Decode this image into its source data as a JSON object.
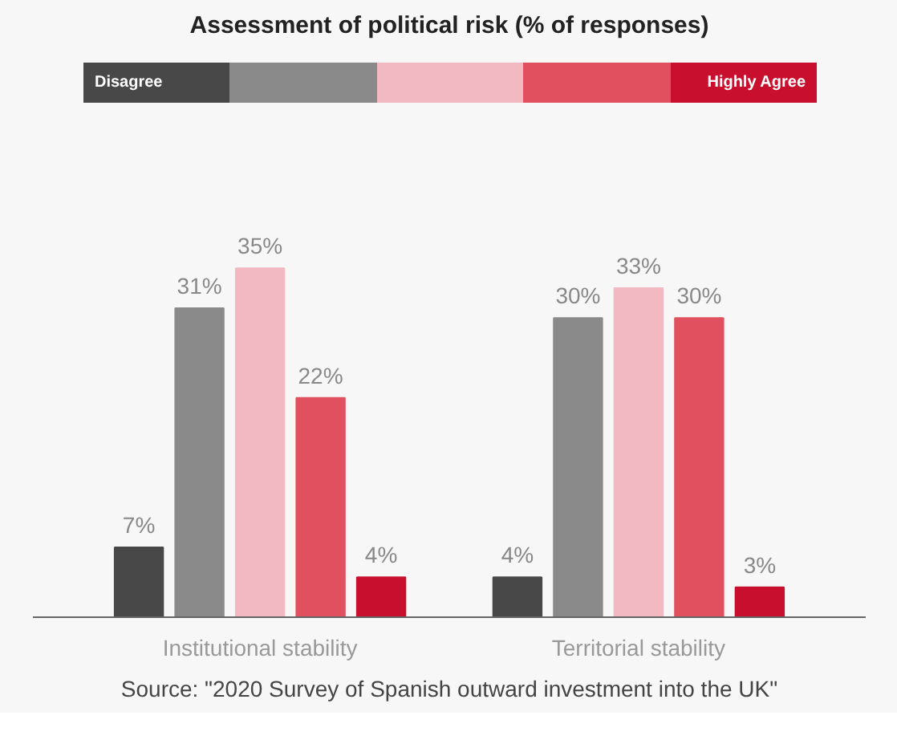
{
  "chart_data": {
    "type": "bar",
    "title": "Assessment of political risk (% of responses)",
    "categories": [
      "Institutional stability",
      "Territorial stability"
    ],
    "series": [
      {
        "name": "Disagree",
        "color": "#484848",
        "values": [
          7,
          4
        ],
        "value_labels": [
          "7%",
          "4%"
        ]
      },
      {
        "color": "#8a8a8a",
        "values": [
          31,
          30
        ],
        "value_labels": [
          "31%",
          "30%"
        ]
      },
      {
        "color": "#f3b9c2",
        "values": [
          35,
          33
        ],
        "value_labels": [
          "35%",
          "33%"
        ]
      },
      {
        "color": "#e0505f",
        "values": [
          22,
          30
        ],
        "value_labels": [
          "22%",
          "30%"
        ]
      },
      {
        "name": "Highly Agree",
        "color": "#c8102e",
        "values": [
          4,
          3
        ],
        "value_labels": [
          "4%",
          "3%"
        ]
      }
    ],
    "legend": "top",
    "grid": false,
    "annotations": [
      "Source: \"2020 Survey of Spanish outward investment into the UK\""
    ]
  }
}
